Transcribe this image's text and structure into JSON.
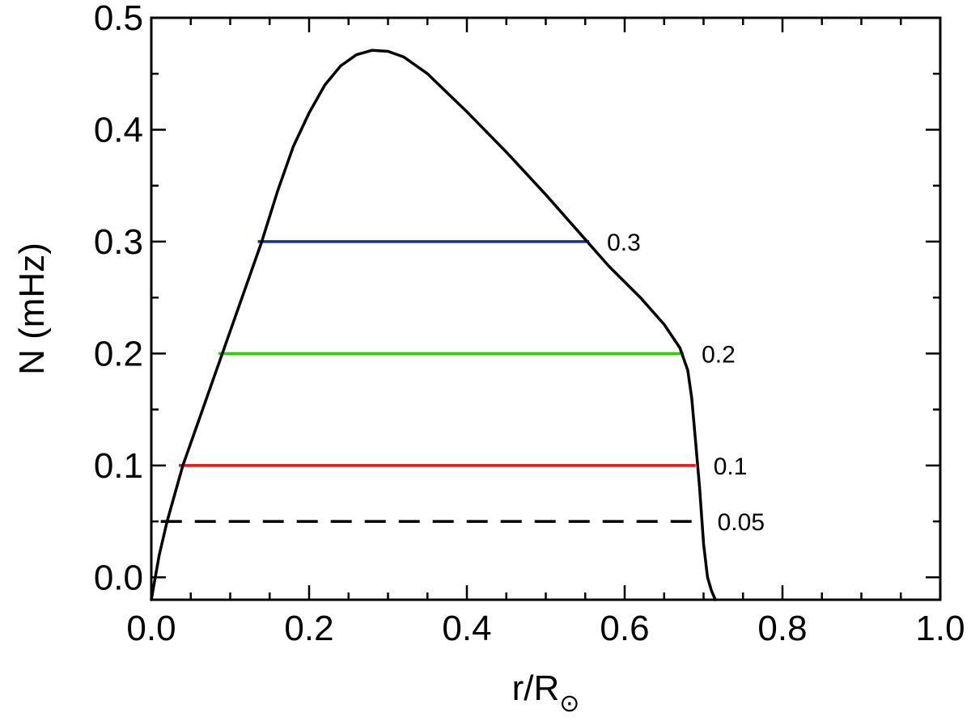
{
  "chart_data": {
    "type": "line",
    "title": "",
    "xlabel_main": "r/R",
    "xlabel_sub": "⊙",
    "ylabel": "N (mHz)",
    "xlim": [
      0.0,
      1.0
    ],
    "ylim": [
      -0.02,
      0.5
    ],
    "x_ticks": [
      "0.0",
      "0.2",
      "0.4",
      "0.6",
      "0.8",
      "1.0"
    ],
    "x_tick_values": [
      0.0,
      0.2,
      0.4,
      0.6,
      0.8,
      1.0
    ],
    "y_ticks": [
      "0.0",
      "0.1",
      "0.2",
      "0.3",
      "0.4",
      "0.5"
    ],
    "y_tick_values": [
      0.0,
      0.1,
      0.2,
      0.3,
      0.4,
      0.5
    ],
    "grid": false,
    "series": [
      {
        "color": "#000000",
        "x": [
          0.0,
          0.005,
          0.01,
          0.02,
          0.04,
          0.06,
          0.08,
          0.1,
          0.12,
          0.14,
          0.16,
          0.18,
          0.2,
          0.22,
          0.24,
          0.26,
          0.28,
          0.3,
          0.32,
          0.35,
          0.4,
          0.45,
          0.5,
          0.55,
          0.58,
          0.62,
          0.65,
          0.67,
          0.68,
          0.685,
          0.69,
          0.695,
          0.7,
          0.705,
          0.71,
          0.715
        ],
        "y": [
          -0.02,
          0.0,
          0.02,
          0.05,
          0.1,
          0.14,
          0.18,
          0.22,
          0.26,
          0.3,
          0.345,
          0.385,
          0.415,
          0.44,
          0.457,
          0.467,
          0.471,
          0.47,
          0.465,
          0.45,
          0.416,
          0.38,
          0.342,
          0.302,
          0.278,
          0.25,
          0.226,
          0.205,
          0.185,
          0.16,
          0.12,
          0.08,
          0.03,
          0.0,
          -0.012,
          -0.02
        ]
      }
    ],
    "levels": [
      {
        "label": "0.3",
        "y": 0.3,
        "x_start": 0.135,
        "x_end": 0.555,
        "color": "#1a2f8f",
        "dashed": false
      },
      {
        "label": "0.2",
        "y": 0.2,
        "x_start": 0.085,
        "x_end": 0.675,
        "color": "#33cc11",
        "dashed": false
      },
      {
        "label": "0.1",
        "y": 0.1,
        "x_start": 0.035,
        "x_end": 0.69,
        "color": "#ee1111",
        "dashed": false
      },
      {
        "label": "0.05",
        "y": 0.05,
        "x_start": 0.012,
        "x_end": 0.695,
        "color": "#000000",
        "dashed": true
      }
    ]
  }
}
